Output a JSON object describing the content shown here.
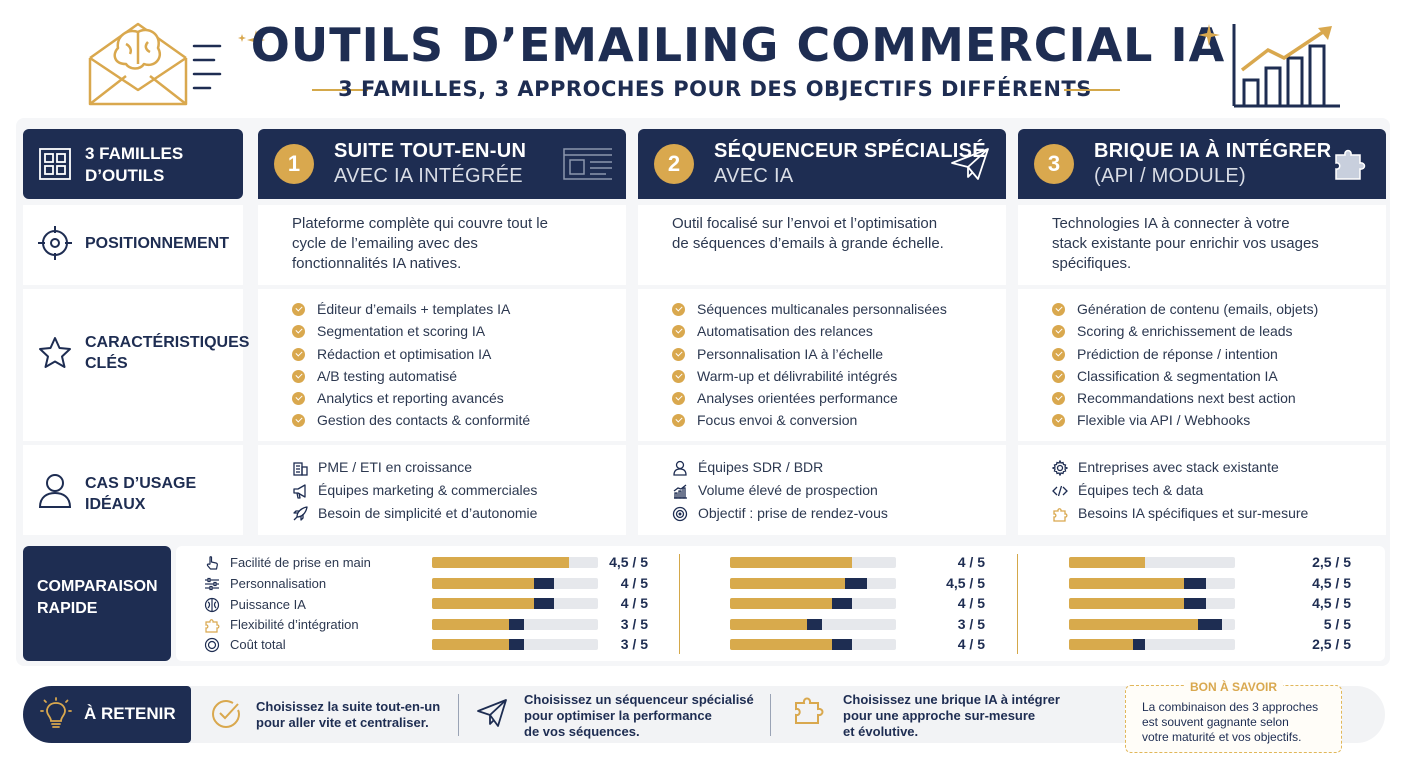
{
  "header": {
    "title": "OUTILS D’EMAILING COMMERCIAL IA",
    "subtitle": "3 FAMILLES, 3 APPROCHES POUR DES OBJECTIFS DIFFÉRENTS"
  },
  "rows": {
    "families": "3 FAMILLES D’OUTILS",
    "positioning": "POSITIONNEMENT",
    "features": "CARACTÉRISTIQUES CLÉS",
    "usecases": "CAS D’USAGE IDÉAUX",
    "comparison": "COMPARAISON RAPIDE"
  },
  "columns": [
    {
      "num": "1",
      "title1": "SUITE TOUT-EN-UN",
      "title2": "AVEC IA INTÉGRÉE",
      "icon": "browser-window-icon",
      "positioning": "Plateforme complète qui couvre tout le cycle de l’emailing avec des fonctionnalités IA natives.",
      "features": [
        "Éditeur d’emails + templates IA",
        "Segmentation et scoring IA",
        "Rédaction et optimisation IA",
        "A/B testing automatisé",
        "Analytics et reporting avancés",
        "Gestion des contacts & conformité"
      ],
      "usecases": [
        {
          "icon": "building-icon",
          "text": "PME / ETI en croissance"
        },
        {
          "icon": "megaphone-icon",
          "text": "Équipes marketing & commerciales"
        },
        {
          "icon": "rocket-icon",
          "text": "Besoin de simplicité et d’autonomie"
        }
      ],
      "scores": [
        {
          "text": "4,5 / 5",
          "value": 4.5
        },
        {
          "text": "4 / 5",
          "value": 4
        },
        {
          "text": "4 / 5",
          "value": 4
        },
        {
          "text": "3 / 5",
          "value": 3
        },
        {
          "text": "3 / 5",
          "value": 3
        }
      ]
    },
    {
      "num": "2",
      "title1": "SÉQUENCEUR SPÉCIALISÉ",
      "title2": "AVEC IA",
      "icon": "paper-plane-icon",
      "positioning": "Outil focalisé sur l’envoi et l’optimisation de séquences d’emails à grande échelle.",
      "features": [
        "Séquences multicanales personnalisées",
        "Automatisation des relances",
        "Personnalisation IA à l’échelle",
        "Warm-up et délivrabilité intégrés",
        "Analyses orientées performance",
        "Focus envoi & conversion"
      ],
      "usecases": [
        {
          "icon": "person-icon",
          "text": "Équipes SDR / BDR"
        },
        {
          "icon": "growth-chart-icon",
          "text": "Volume élevé de prospection"
        },
        {
          "icon": "target-icon",
          "text": "Objectif : prise de rendez-vous"
        }
      ],
      "scores": [
        {
          "text": "4 / 5",
          "value": 4
        },
        {
          "text": "4,5 / 5",
          "value": 4.5
        },
        {
          "text": "4 / 5",
          "value": 4
        },
        {
          "text": "3 / 5",
          "value": 3
        },
        {
          "text": "4 / 5",
          "value": 4
        }
      ]
    },
    {
      "num": "3",
      "title1": "BRIQUE IA À INTÉGRER",
      "title2": "(API / MODULE)",
      "icon": "puzzle-piece-icon",
      "positioning": "Technologies IA à connecter à votre stack existante pour enrichir vos usages spécifiques.",
      "features": [
        "Génération de contenu (emails, objets)",
        "Scoring & enrichissement de leads",
        "Prédiction de réponse / intention",
        "Classification & segmentation IA",
        "Recommandations next best action",
        "Flexible via API / Webhooks"
      ],
      "usecases": [
        {
          "icon": "gear-icon",
          "text": "Entreprises avec stack existante"
        },
        {
          "icon": "code-icon",
          "text": "Équipes tech & data"
        },
        {
          "icon": "puzzle-icon",
          "text": "Besoins IA spécifiques et sur-mesure"
        }
      ],
      "scores": [
        {
          "text": "2,5 / 5",
          "value": 2.5
        },
        {
          "text": "4,5 / 5",
          "value": 4.5
        },
        {
          "text": "4,5 / 5",
          "value": 4.5
        },
        {
          "text": "5 / 5",
          "value": 5
        },
        {
          "text": "2,5 / 5",
          "value": 2.5
        }
      ]
    }
  ],
  "criteria": [
    {
      "icon": "hand-pointer-icon",
      "label": "Facilité de prise en main"
    },
    {
      "icon": "sliders-icon",
      "label": "Personnalisation"
    },
    {
      "icon": "brain-icon",
      "label": "Puissance IA"
    },
    {
      "icon": "puzzle-icon",
      "label": "Flexibilité d’intégration"
    },
    {
      "icon": "coin-icon",
      "label": "Coût total"
    }
  ],
  "footer": {
    "label": "À RETENIR",
    "tips": [
      {
        "icon": "check-circle-icon",
        "line1": "Choisissez la suite tout-en-un",
        "line2": "pour aller vite et centraliser.",
        "line3": ""
      },
      {
        "icon": "paper-plane-icon",
        "line1": "Choisissez un séquenceur spécialisé",
        "line2": "pour optimiser la performance",
        "line3": "de vos séquences."
      },
      {
        "icon": "puzzle-piece-icon",
        "line1": "Choisissez une brique IA à intégrer",
        "line2": "pour une approche sur-mesure",
        "line3": "et évolutive."
      }
    ],
    "good_to_know": {
      "title": "BON À SAVOIR",
      "line1": "La combinaison des 3 approches",
      "line2": "est souvent gagnante selon",
      "line3": "votre maturité et vos objectifs."
    }
  },
  "colors": {
    "navy": "#1e2d52",
    "gold": "#d9a84e",
    "track": "#e6e8ec"
  }
}
